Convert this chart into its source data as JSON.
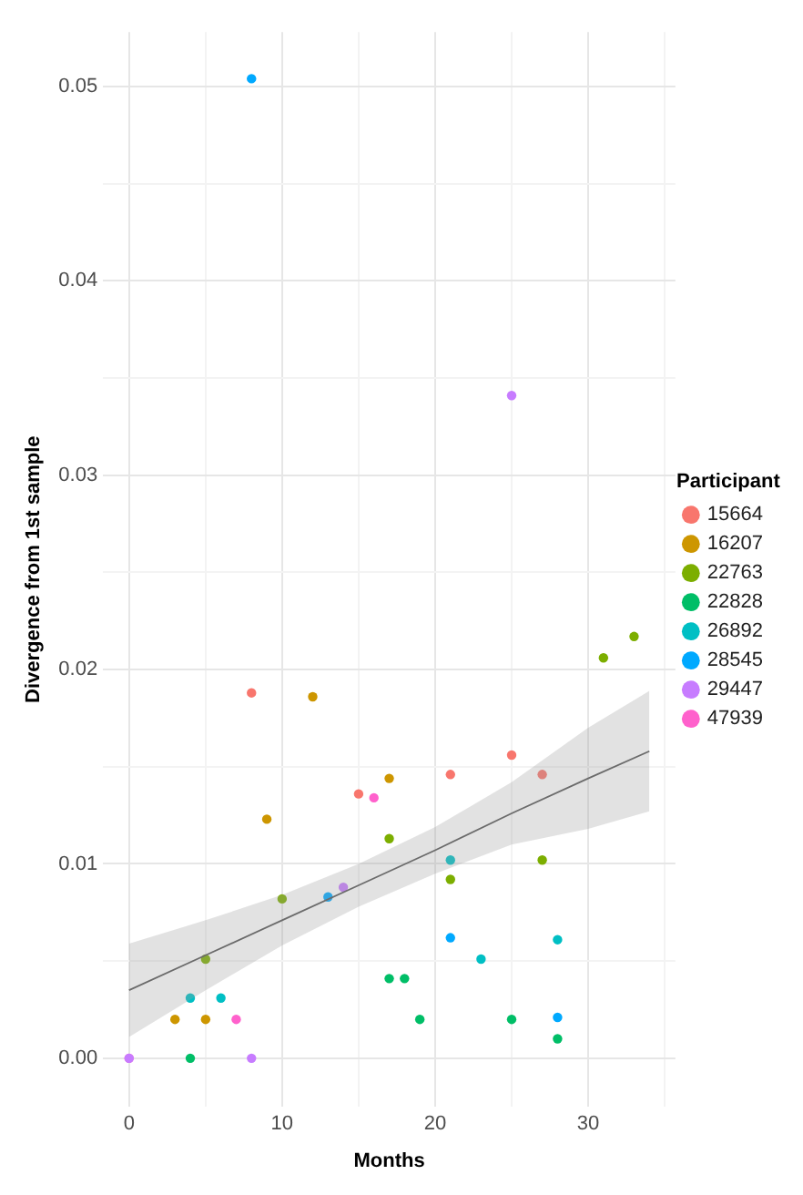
{
  "chart_data": {
    "type": "scatter",
    "xlabel": "Months",
    "ylabel": "Divergence from 1st sample",
    "legend_title": "Participant",
    "legend": "right",
    "grid": true,
    "marker": "circle",
    "xlim": [
      -1.7,
      35.7
    ],
    "xticks": [
      0,
      {
        "value": 5,
        "label": null
      },
      10,
      {
        "value": 15,
        "label": null
      },
      20,
      {
        "value": 25,
        "label": null
      },
      30,
      {
        "value": 35,
        "label": null
      }
    ],
    "ylim": [
      -0.0025,
      0.0528
    ],
    "yticks": [
      {
        "value": 0,
        "label": "0.00"
      },
      {
        "value": 0.005,
        "label": null
      },
      {
        "value": 0.01,
        "label": "0.01"
      },
      {
        "value": 0.015,
        "label": null
      },
      {
        "value": 0.02,
        "label": "0.02"
      },
      {
        "value": 0.025,
        "label": null
      },
      {
        "value": 0.03,
        "label": "0.03"
      },
      {
        "value": 0.035,
        "label": null
      },
      {
        "value": 0.04,
        "label": "0.04"
      },
      {
        "value": 0.045,
        "label": null
      },
      {
        "value": 0.05,
        "label": "0.05"
      }
    ],
    "series": [
      {
        "type": "line",
        "color": "#555555",
        "marker": "none",
        "x": [
          0,
          5,
          10,
          15,
          20,
          25,
          30,
          34
        ],
        "values": [
          0.0035,
          0.0053,
          0.0071,
          0.0089,
          0.0107,
          0.0126,
          0.0144,
          0.0158
        ],
        "lower": [
          0.0011,
          0.0035,
          0.0058,
          0.0078,
          0.0095,
          0.011,
          0.0118,
          0.0127
        ],
        "upper": [
          0.0059,
          0.0071,
          0.0084,
          0.01,
          0.0119,
          0.0142,
          0.017,
          0.0189
        ]
      },
      {
        "name": "15664",
        "color": "#f8766d",
        "x": [
          8,
          15,
          21,
          25,
          27
        ],
        "values": [
          0.0188,
          0.0136,
          0.0146,
          0.0156,
          0.0146
        ]
      },
      {
        "name": "16207",
        "color": "#cd9600",
        "x": [
          3,
          5,
          9,
          12,
          17
        ],
        "values": [
          0.002,
          0.002,
          0.0123,
          0.0186,
          0.0144
        ]
      },
      {
        "name": "22763",
        "color": "#7cae00",
        "x": [
          5,
          10,
          17,
          21,
          27,
          31,
          33
        ],
        "values": [
          0.0051,
          0.0082,
          0.0113,
          0.0092,
          0.0102,
          0.0206,
          0.0217
        ]
      },
      {
        "name": "22828",
        "color": "#00be67",
        "x": [
          4,
          17,
          18,
          19,
          25,
          28
        ],
        "values": [
          0,
          0.0041,
          0.0041,
          0.002,
          0.002,
          0.001
        ]
      },
      {
        "name": "26892",
        "color": "#00bfc4",
        "x": [
          4,
          6,
          21,
          23,
          28
        ],
        "values": [
          0.0031,
          0.0031,
          0.0102,
          0.0051,
          0.0061
        ]
      },
      {
        "name": "28545",
        "color": "#00a9ff",
        "x": [
          8,
          13,
          21,
          28
        ],
        "values": [
          0.0504,
          0.0083,
          0.0062,
          0.0021
        ]
      },
      {
        "name": "29447",
        "color": "#c77cff",
        "x": [
          0,
          8,
          14,
          25
        ],
        "values": [
          0,
          0,
          0.0088,
          0.0341
        ]
      },
      {
        "name": "47939",
        "color": "#ff61cc",
        "x": [
          0,
          7,
          16
        ],
        "values": [
          0,
          0.002,
          0.0134
        ]
      }
    ]
  }
}
